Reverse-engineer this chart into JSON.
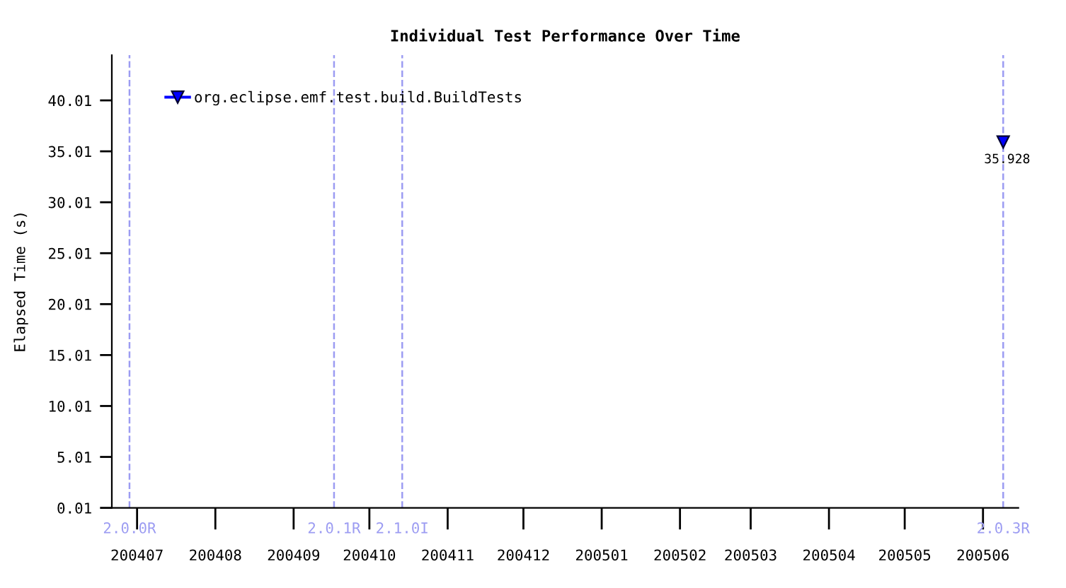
{
  "chart_data": {
    "type": "line",
    "title": "Individual Test Performance Over Time",
    "ylabel": "Elapsed Time (s)",
    "x": [
      "2005-06-09"
    ],
    "series": [
      {
        "name": "org.eclipse.emf.test.build.BuildTests",
        "color": "#0000ff",
        "values": [
          35.928
        ]
      }
    ],
    "xlim": [
      "2004-06-21",
      "2005-06-15"
    ],
    "xticks": [
      {
        "value": "2004-07-01",
        "label": "200407"
      },
      {
        "value": "2004-08-01",
        "label": "200408"
      },
      {
        "value": "2004-09-01",
        "label": "200409"
      },
      {
        "value": "2004-10-01",
        "label": "200410"
      },
      {
        "value": "2004-11-01",
        "label": "200411"
      },
      {
        "value": "2004-12-01",
        "label": "200412"
      },
      {
        "value": "2005-01-01",
        "label": "200501"
      },
      {
        "value": "2005-02-01",
        "label": "200502"
      },
      {
        "value": "2005-03-01",
        "label": "200503"
      },
      {
        "value": "2005-04-01",
        "label": "200504"
      },
      {
        "value": "2005-05-01",
        "label": "200505"
      },
      {
        "value": "2005-06-01",
        "label": "200506"
      }
    ],
    "ylim": [
      0.01,
      44.45
    ],
    "yticks": [
      0.01,
      5.01,
      10.01,
      15.01,
      20.01,
      25.01,
      30.01,
      35.01,
      40.01
    ],
    "ref_lines": [
      {
        "axis": "x",
        "value": "2004-06-28",
        "label": "2.0.0R",
        "color": "#9c9cf2",
        "line_style": "dashed"
      },
      {
        "axis": "x",
        "value": "2004-09-17",
        "label": "2.0.1R",
        "color": "#9c9cf2",
        "line_style": "dashed"
      },
      {
        "axis": "x",
        "value": "2004-10-14",
        "label": "2.1.0I",
        "color": "#9c9cf2",
        "line_style": "dashed"
      },
      {
        "axis": "x",
        "value": "2005-06-09",
        "label": "2.0.3R",
        "color": "#9c9cf2",
        "line_style": "dashed"
      }
    ],
    "marker": "triangle",
    "line_style": "solid",
    "data_labels": true,
    "legend": "top left"
  }
}
